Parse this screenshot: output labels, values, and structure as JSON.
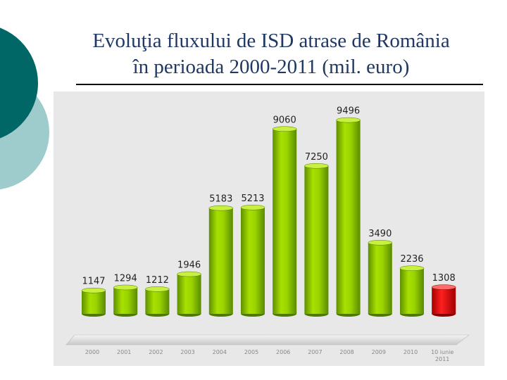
{
  "slide": {
    "title_line1": "Evoluţia fluxului de ISD atrase de România",
    "title_line2": "în perioada 2000-2011 (mil. euro)"
  },
  "colors": {
    "title": "#1f3864",
    "decor_dark": "#006666",
    "decor_light": "#9ecccc",
    "bar_green": "#9acc00",
    "bar_highlight": "#e00000",
    "panel_bg": "#e8e8e8"
  },
  "chart_data": {
    "type": "bar",
    "title": "",
    "xlabel": "",
    "ylabel": "",
    "ylim": [
      0,
      10000
    ],
    "grid": false,
    "categories": [
      [
        "2000"
      ],
      [
        "2001"
      ],
      [
        "2002"
      ],
      [
        "2003"
      ],
      [
        "2004"
      ],
      [
        "2005"
      ],
      [
        "2006"
      ],
      [
        "2007"
      ],
      [
        "2008"
      ],
      [
        "2009"
      ],
      [
        "2010"
      ],
      [
        "10 iunie",
        "2011"
      ]
    ],
    "values": [
      1147,
      1294,
      1212,
      1946,
      5183,
      5213,
      9060,
      7250,
      9496,
      3490,
      2236,
      1308
    ],
    "value_labels": [
      "1147",
      "1294",
      "1212",
      "1946",
      "5183",
      "5213",
      "9060",
      "7250",
      "9496",
      "3490",
      "2236",
      "1308"
    ],
    "highlight_index": 11
  }
}
